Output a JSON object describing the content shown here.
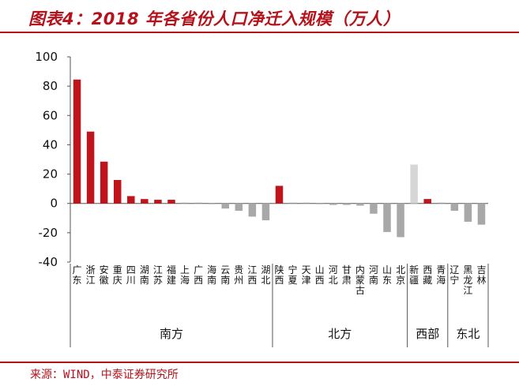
{
  "header": {
    "title": "图表4：2018 年各省份人口净迁入规模（万人）"
  },
  "footer": {
    "source": "来源：WIND，中泰证券研究所"
  },
  "colors": {
    "accent": "#b5121b",
    "highlight_bar": "#c0141c",
    "normal_bar": "#a8a8a8",
    "pale_bar": "#d6d6d6"
  },
  "chart_data": {
    "type": "bar",
    "title": "2018 年各省份人口净迁入规模（万人）",
    "xlabel": "",
    "ylabel": "",
    "ylim": [
      -40,
      100
    ],
    "yticks": [
      100,
      80,
      60,
      40,
      20,
      0,
      -20,
      -40
    ],
    "grid": false,
    "categories": [
      "广东",
      "浙江",
      "安徽",
      "重庆",
      "四川",
      "湖南",
      "江苏",
      "福建",
      "上海",
      "广西",
      "海南",
      "云南",
      "贵州",
      "江西",
      "湖北",
      "陕西",
      "宁夏",
      "天津",
      "山西",
      "河北",
      "甘肃",
      "内蒙古",
      "河南",
      "山东",
      "北京",
      "新疆",
      "西藏",
      "青海",
      "辽宁",
      "黑龙江",
      "吉林"
    ],
    "values": [
      84.5,
      49,
      28.5,
      16,
      5,
      3,
      2.5,
      2.5,
      0.5,
      0.5,
      -0.5,
      -3.5,
      -5,
      -9,
      -11.5,
      12,
      0.5,
      0.5,
      -0.5,
      -1,
      -1,
      -1.5,
      -7,
      -19.5,
      -23,
      26.5,
      3,
      0.5,
      -5,
      -12.5,
      -14.5
    ],
    "bar_style": [
      "highlight",
      "highlight",
      "highlight",
      "highlight",
      "highlight",
      "highlight",
      "highlight",
      "highlight",
      "normal",
      "normal",
      "normal",
      "normal",
      "normal",
      "normal",
      "normal",
      "highlight",
      "normal",
      "normal",
      "normal",
      "normal",
      "normal",
      "normal",
      "normal",
      "normal",
      "normal",
      "pale",
      "highlight",
      "normal",
      "normal",
      "normal",
      "normal"
    ],
    "groups": [
      {
        "name": "南方",
        "start": 0,
        "end": 14
      },
      {
        "name": "北方",
        "start": 15,
        "end": 24
      },
      {
        "name": "西部",
        "start": 25,
        "end": 27
      },
      {
        "name": "东北",
        "start": 28,
        "end": 30
      }
    ]
  }
}
